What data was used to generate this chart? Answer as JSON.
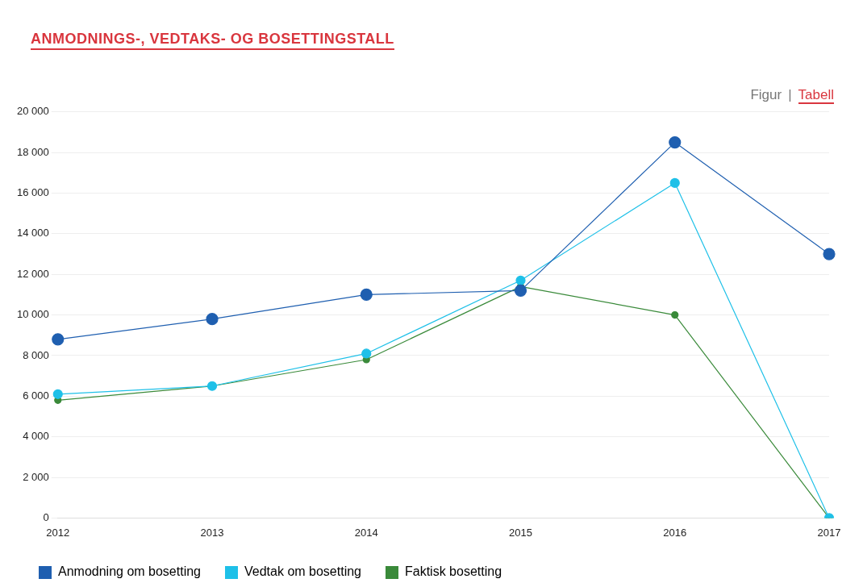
{
  "chart_data": {
    "type": "line",
    "title": "ANMODNINGS-, VEDTAKS- OG BOSETTINGSTALL",
    "annotations": [
      "Figur",
      "|",
      "Tabell"
    ],
    "categories": [
      "2012",
      "2013",
      "2014",
      "2015",
      "2016",
      "2017"
    ],
    "series": [
      {
        "name": "Anmodning om bosetting",
        "color": "#1f5fb0",
        "values": [
          8800,
          9800,
          11000,
          11200,
          18500,
          13000
        ]
      },
      {
        "name": "Vedtak om bosetting",
        "color": "#1ec0e8",
        "values": [
          6100,
          6500,
          8100,
          11700,
          16500,
          0
        ]
      },
      {
        "name": "Faktisk bosetting",
        "color": "#3a8a3a",
        "values": [
          5800,
          6500,
          7800,
          11400,
          10000,
          0
        ]
      }
    ],
    "ylim": [
      0,
      20000
    ],
    "yticks": [
      {
        "value": 0,
        "label": "0"
      },
      {
        "value": 2000,
        "label": "2 000"
      },
      {
        "value": 4000,
        "label": "4 000"
      },
      {
        "value": 6000,
        "label": "6 000"
      },
      {
        "value": 8000,
        "label": "8 000"
      },
      {
        "value": 10000,
        "label": "10 000"
      },
      {
        "value": 12000,
        "label": "12 000"
      },
      {
        "value": 14000,
        "label": "14 000"
      },
      {
        "value": 16000,
        "label": "16 000"
      },
      {
        "value": 18000,
        "label": "18 000"
      },
      {
        "value": 20000,
        "label": "20 000"
      }
    ],
    "grid": "y",
    "legend": "bottom left",
    "marker": "circle",
    "line_style": "solid"
  }
}
